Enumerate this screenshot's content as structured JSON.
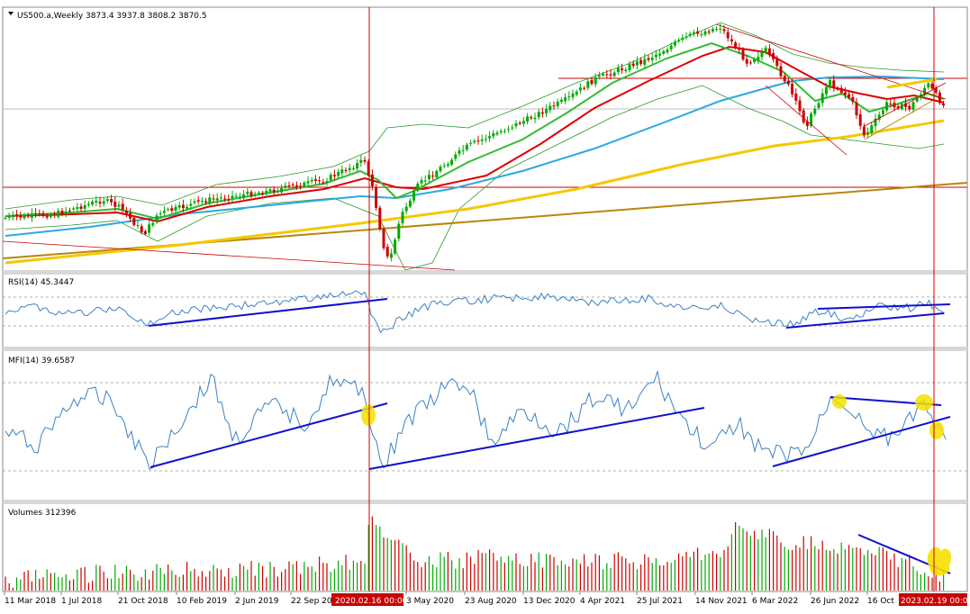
{
  "header": {
    "symbol_line": "US500.a,Weekly  3873.4 3937.8 3808.2 3870.5"
  },
  "panes": {
    "rsi_label": "RSI(14) 45.3447",
    "mfi_label": "MFI(14) 39.6587",
    "volume_label": "Volumes 312396"
  },
  "time_axis": {
    "labels": [
      "11 Mar 2018",
      "1 Jul 2018",
      "21 Oct 2018",
      "10 Feb 2019",
      "2 Jun 2019",
      "22 Sep 20",
      "3 May 2020",
      "23 Aug 2020",
      "13 Dec 2020",
      "4 Apr 2021",
      "25 Jul 2021",
      "14 Nov 2021",
      "6 Mar 2022",
      "26 Jun 2022",
      "16 Oct"
    ],
    "highlight_left": "2020.02.16 00:00",
    "highlight_right": "2023.02.19 00:00"
  },
  "colors": {
    "bull": "#00aa00",
    "bear": "#cc0000",
    "ma_fast": "#33bb33",
    "ma_mid": "#dd0000",
    "ma_slow": "#2ba8e0",
    "ma_long": "#f5c800",
    "ma_trend": "#b8860b",
    "bollinger": "#2a9a2a",
    "oscillator": "#3b82c4",
    "trendline": "#1010cc",
    "marker": "#f5e000",
    "crosshair": "#cc0000"
  },
  "chart_data": {
    "type": "candlestick",
    "symbol": "US500.a",
    "timeframe": "Weekly",
    "ohlc_last": {
      "open": 3873.4,
      "high": 3937.8,
      "low": 3808.2,
      "close": 3870.5
    },
    "panes": [
      {
        "name": "price",
        "indicators": [
          "bollinger-bands",
          "moving-averages"
        ]
      },
      {
        "name": "RSI(14)",
        "value": 45.3447,
        "levels": [
          70,
          30
        ]
      },
      {
        "name": "MFI(14)",
        "value": 39.6587,
        "levels": [
          80,
          20
        ]
      },
      {
        "name": "Volumes",
        "value": 312396
      }
    ],
    "x_range": [
      "2018-02-04",
      "2023-02-19"
    ],
    "gridlines": false
  }
}
